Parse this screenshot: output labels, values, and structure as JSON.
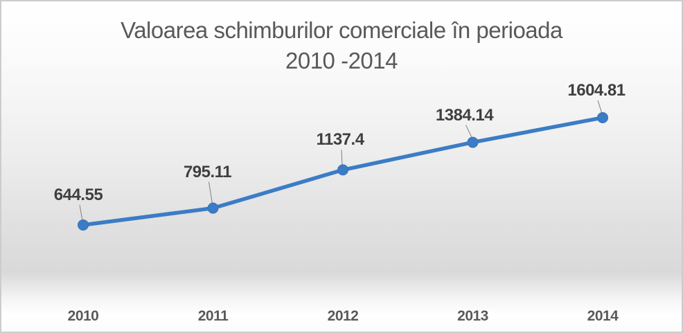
{
  "chart_data": {
    "type": "line",
    "title": "Valoarea schimburilor comerciale în perioada 2010 -2014",
    "title_lines": [
      "Valoarea schimburilor comerciale în perioada",
      "2010 -2014"
    ],
    "categories": [
      "2010",
      "2011",
      "2012",
      "2013",
      "2014"
    ],
    "series": [
      {
        "name": "Valoarea schimburilor comerciale",
        "values": [
          644.55,
          795.11,
          1137.4,
          1384.14,
          1604.81
        ]
      }
    ],
    "data_labels": [
      "644.55",
      "795.11",
      "1137.4",
      "1384.14",
      "1604.81"
    ],
    "xlabel": "",
    "ylabel": "",
    "ylim": [
      0,
      2000
    ],
    "grid": false,
    "legend": "none",
    "has_leader_lines": true,
    "colors": {
      "line": "#3c7cc6",
      "marker_fill": "#3c7cc6",
      "marker_edge": "#3a72b5",
      "leader_line": "#7f7f7f",
      "title": "#595959",
      "data_label": "#3f3f3f",
      "axis_label": "#595959",
      "border": "#cccccc",
      "background_mid": "#d9d9d9"
    }
  }
}
